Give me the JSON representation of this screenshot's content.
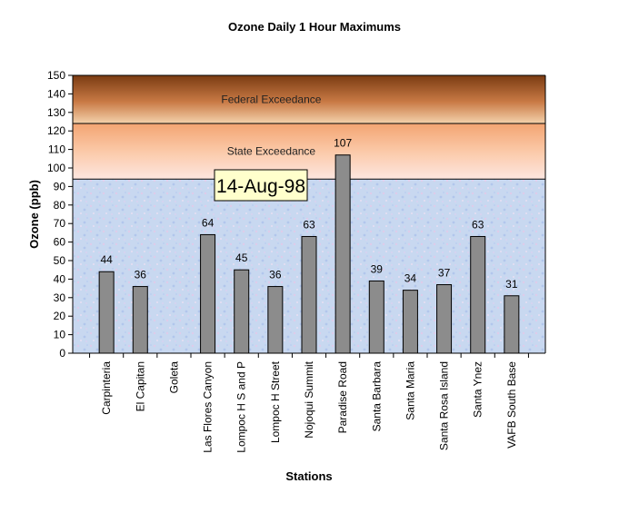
{
  "chart_data": {
    "type": "bar",
    "title": "Ozone Daily 1 Hour Maximums",
    "xlabel": "Stations",
    "ylabel": "Ozone (ppb)",
    "ylim": [
      0,
      150
    ],
    "ytick_step": 10,
    "grid": false,
    "categories": [
      "Carpinteria",
      "El Capitan",
      "Goleta",
      "Las Flores Canyon",
      "Lompoc H S and P",
      "Lompoc H Street",
      "Nojoqui Summit",
      "Paradise Road",
      "Santa Barbara",
      "Santa Maria",
      "Santa Rosa Island",
      "Santa Ynez",
      "VAFB South Base"
    ],
    "values": [
      44,
      36,
      null,
      64,
      45,
      36,
      63,
      107,
      39,
      34,
      37,
      63,
      31
    ],
    "data_labels": [
      "44",
      "36",
      "",
      "64",
      "45",
      "36",
      "63",
      "107",
      "39",
      "34",
      "37",
      "63",
      "31"
    ],
    "bar_color": "#8c8c8c",
    "bands": [
      {
        "label": "Federal Exceedance",
        "from": 124,
        "to": 150,
        "color_top": "#7a3b12",
        "color_bottom": "#f4d2ac"
      },
      {
        "label": "State Exceedance",
        "from": 94,
        "to": 124,
        "color_top": "#f3a472",
        "color_bottom": "#fde6e0"
      }
    ],
    "background_color": "#c8d8f0",
    "annotation": {
      "text": "14-Aug-98",
      "fill": "#ffffcc"
    }
  }
}
